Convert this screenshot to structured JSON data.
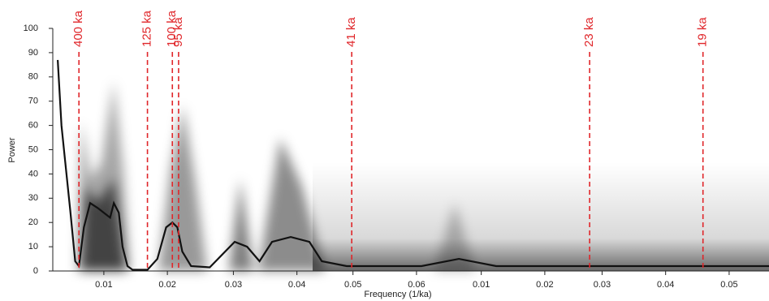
{
  "chart_data": {
    "type": "line",
    "x_label": "Frequency (1/ka)",
    "y_label": "Power",
    "x": [
      0.0008,
      0.0011,
      0.0014,
      0.0018,
      0.0022,
      0.0025,
      0.0029,
      0.0034,
      0.004,
      0.0045,
      0.005,
      0.0053,
      0.0057,
      0.006,
      0.0064,
      0.0068,
      0.008,
      0.0088,
      0.0095,
      0.01,
      0.0104,
      0.0108,
      0.0115,
      0.013,
      0.015,
      0.016,
      0.017,
      0.018,
      0.0195,
      0.021,
      0.022,
      0.024,
      0.03,
      0.033,
      0.036,
      0.045,
      0.0579
    ],
    "values": [
      87,
      60,
      45,
      25,
      4,
      2,
      18,
      28,
      26,
      24,
      22,
      28,
      24,
      10,
      2,
      0.5,
      0.5,
      5,
      18,
      20,
      18,
      8,
      2,
      1.5,
      12,
      10,
      4,
      12,
      14,
      12,
      4,
      2,
      2,
      5,
      2,
      2,
      2
    ],
    "color": "#111111",
    "xlim": [
      0.0004,
      0.0579
    ],
    "xticks": [
      {
        "value": 0.0045,
        "label": "0.01"
      },
      {
        "value": 0.0096,
        "label": "0.02"
      },
      {
        "value": 0.0149,
        "label": "0.03"
      },
      {
        "value": 0.02,
        "label": "0.04"
      },
      {
        "value": 0.0245,
        "label": "0.05"
      },
      {
        "value": 0.0296,
        "label": "0.06"
      },
      {
        "value": 0.0348,
        "label": "0.01"
      },
      {
        "value": 0.0399,
        "label": "0.02"
      },
      {
        "value": 0.0445,
        "label": "0.03"
      },
      {
        "value": 0.0496,
        "label": "0.04"
      },
      {
        "value": 0.0547,
        "label": "0.05"
      }
    ],
    "ylim": [
      0,
      100
    ],
    "yticks": [
      0,
      10,
      20,
      30,
      40,
      50,
      60,
      70,
      80,
      90,
      100
    ],
    "annotation_color": "#e0262a",
    "annotations": [
      {
        "label": "400 ka",
        "x": 0.0025
      },
      {
        "label": "125 ka",
        "x": 0.008
      },
      {
        "label": "100 ka",
        "x": 0.01
      },
      {
        "label": "95 ka",
        "x": 0.0105
      },
      {
        "label": "41 ka",
        "x": 0.0244
      },
      {
        "label": "23 ka",
        "x": 0.0435
      },
      {
        "label": "19 ka",
        "x": 0.0526
      }
    ]
  }
}
